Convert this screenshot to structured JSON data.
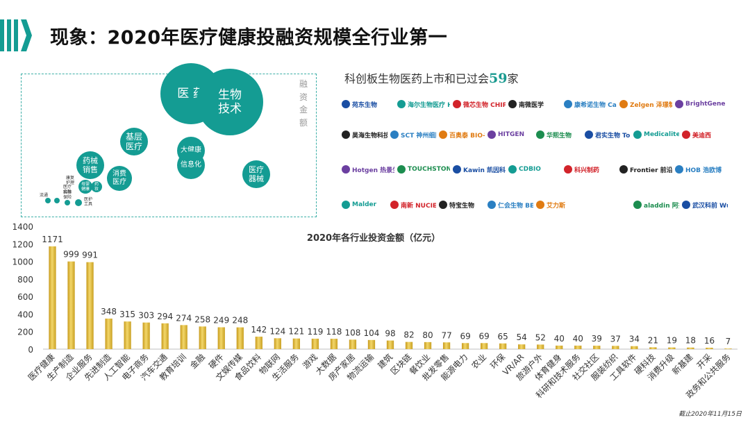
{
  "title": "现象：2020年医疗健康投融资规模全行业第一",
  "bubbles": {
    "axis_label": "融资金额",
    "items": [
      {
        "label": "医 药",
        "color": "#149c93"
      },
      {
        "label": "生物\n技术",
        "color": "#149c93"
      },
      {
        "label": "基层\n医疗",
        "color": "#149c93"
      },
      {
        "label": "大健康",
        "color": "#149c93"
      },
      {
        "label": "信息化",
        "color": "#149c93"
      },
      {
        "label": "药械\n销售",
        "color": "#149c93"
      },
      {
        "label": "消费\n医疗",
        "color": "#149c93"
      },
      {
        "label": "医疗\n器械",
        "color": "#149c93"
      },
      {
        "label": "母婴\n健康",
        "color": "#149c93"
      },
      {
        "label": "药\n妆",
        "color": "#149c93"
      },
      {
        "label": "",
        "color": "#149c93"
      },
      {
        "label": "",
        "color": "#149c93"
      },
      {
        "label": "",
        "color": "#149c93"
      },
      {
        "label": "",
        "color": "#149c93"
      }
    ],
    "small_labels": [
      "康复\n护理",
      "医疗\n金融",
      "科研\n保险",
      "流通",
      "医护\n工具"
    ]
  },
  "logos": {
    "title_prefix": "科创板生物医药上市和已过会",
    "title_count": "59",
    "title_suffix": "家",
    "rows": [
      [
        "苑东生物",
        "海尔生物医疗 Haier Biomedical",
        "微芯生物 CHIPSCREEN",
        "南微医学",
        "康希诺生物 CanSinoBIO",
        "Zelgen 泽璟制药",
        "BrightGene"
      ],
      [
        "昊海生物科技",
        "SCT 神州细胞 SinoCellTech",
        "百奥泰 BIO-THERA",
        "HITGEN",
        "华熙生物",
        "君实生物 TopAlliance",
        "Medicalite",
        "美迪西"
      ],
      [
        "Hotgen 热景生物",
        "TOUCHSTONE",
        "Kawin 凯因科技",
        "CDBIO",
        "科兴制药",
        "Frontier 前沿生物",
        "HOB 浩欧博"
      ],
      [
        "Malder",
        "南新 NUCIEN",
        "特宝生物",
        "仁会生物 BENEMAE",
        "艾力斯",
        "",
        "aladdin 阿拉丁",
        "武汉科前 Wuhan Keqian"
      ]
    ]
  },
  "chart_data": {
    "type": "bar",
    "title": "2020年各行业投资金额（亿元）",
    "categories": [
      "医疗健康",
      "生产制造",
      "企业服务",
      "先进制造",
      "人工智能",
      "电子商务",
      "汽车交通",
      "教育培训",
      "金融",
      "硬件",
      "文娱传媒",
      "食品饮料",
      "物联网",
      "生活服务",
      "游戏",
      "大数据",
      "房产家居",
      "物流运输",
      "建筑",
      "区块链",
      "餐饮业",
      "批发零售",
      "能源电力",
      "农业",
      "环保",
      "VR/AR",
      "旅游户外",
      "体育健身",
      "科研和技术服务",
      "社交社区",
      "服装纺织",
      "工具软件",
      "硬科技",
      "消费升级",
      "新基建",
      "开采",
      "政务和公共服务"
    ],
    "values": [
      1171,
      999,
      991,
      348,
      315,
      303,
      294,
      274,
      258,
      249,
      248,
      142,
      124,
      121,
      119,
      118,
      108,
      104,
      98,
      82,
      80,
      77,
      69,
      69,
      65,
      54,
      52,
      40,
      40,
      39,
      37,
      34,
      21,
      19,
      18,
      16,
      7
    ],
    "ylim": [
      0,
      1400
    ],
    "yticks": [
      0,
      200,
      400,
      600,
      800,
      1000,
      1200,
      1400
    ],
    "bar_color": "#d9b230"
  },
  "footnote": "截止2020年11月15日"
}
